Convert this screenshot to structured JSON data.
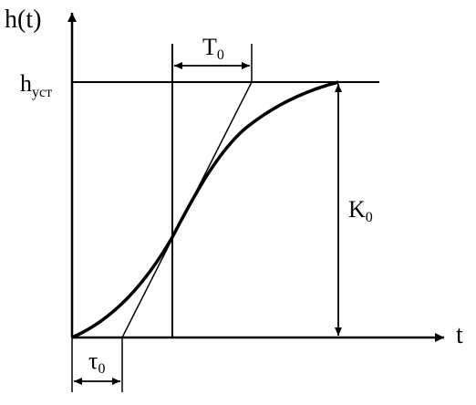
{
  "diagram": {
    "y_axis_label": "h(t)",
    "x_axis_label": "t",
    "h_level_label": {
      "main": "h",
      "sub": "уст"
    },
    "T0_label": {
      "main": "T",
      "sub": "0"
    },
    "K0_label": {
      "main": "K",
      "sub": "0"
    },
    "tau0_label": {
      "main": "τ",
      "sub": "0"
    }
  }
}
